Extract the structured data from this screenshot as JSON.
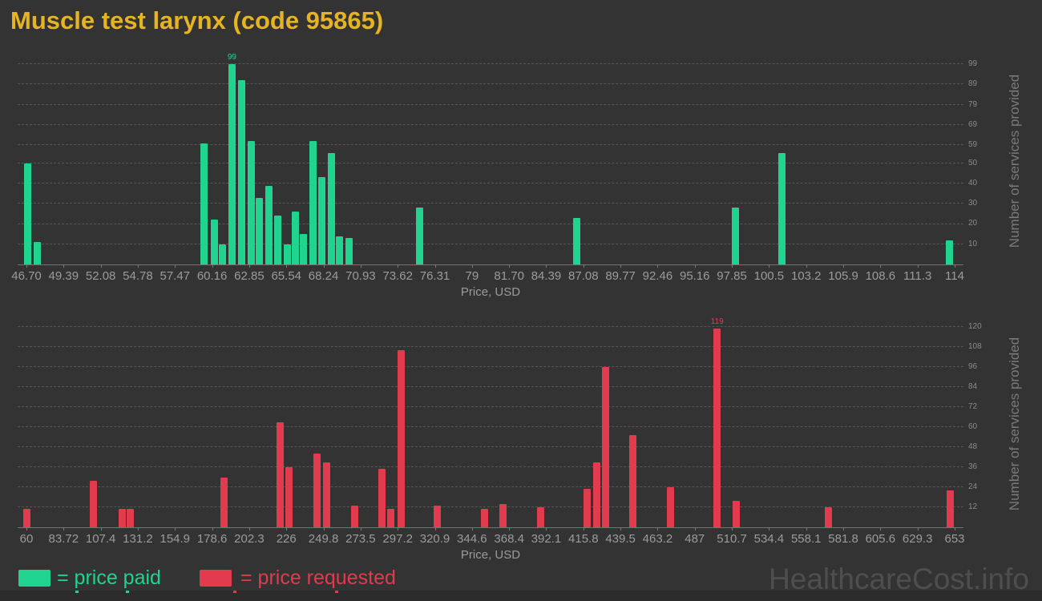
{
  "title": "Muscle test larynx (code 95865)",
  "watermark": "HealthcareCost.info",
  "legend": {
    "paid_label": "= price paid",
    "requested_label": "= price requested"
  },
  "colors": {
    "background": "#333333",
    "paid": "#20d38e",
    "requested": "#e13b4d",
    "title": "#e6b422",
    "axis_text": "#9b9b9b",
    "right_axis_text": "#8a8a8a",
    "axis_line": "#747474",
    "grid": "#55554f",
    "watermark": "#4e4e4e",
    "bottom_strip": "#2c2c2c"
  },
  "chart_data": [
    {
      "type": "bar",
      "name": "price-paid-histogram",
      "series": "price paid",
      "xlabel": "Price, USD",
      "ylabel": "Number of services provided",
      "x_min": 46.7,
      "x_max": 114,
      "x_ticks": [
        "46.70",
        "49.39",
        "52.08",
        "54.78",
        "57.47",
        "60.16",
        "62.85",
        "65.54",
        "68.24",
        "70.93",
        "73.62",
        "76.31",
        "79",
        "81.70",
        "84.39",
        "87.08",
        "89.77",
        "92.46",
        "95.16",
        "97.85",
        "100.5",
        "103.2",
        "105.9",
        "108.6",
        "111.3",
        "114"
      ],
      "y_ticks": [
        10,
        20,
        30,
        40,
        50,
        59,
        69,
        79,
        89,
        99
      ],
      "ylim": [
        0,
        99
      ],
      "grid": true,
      "points": [
        {
          "price": 46.8,
          "count": 50
        },
        {
          "price": 47.5,
          "count": 11
        },
        {
          "price": 59.6,
          "count": 60
        },
        {
          "price": 60.3,
          "count": 22
        },
        {
          "price": 60.9,
          "count": 10
        },
        {
          "price": 61.6,
          "count": 99,
          "label": "99"
        },
        {
          "price": 62.3,
          "count": 91
        },
        {
          "price": 63.0,
          "count": 61
        },
        {
          "price": 63.6,
          "count": 33
        },
        {
          "price": 64.3,
          "count": 39
        },
        {
          "price": 64.9,
          "count": 24
        },
        {
          "price": 65.6,
          "count": 10
        },
        {
          "price": 66.2,
          "count": 26
        },
        {
          "price": 66.8,
          "count": 15
        },
        {
          "price": 67.5,
          "count": 61
        },
        {
          "price": 68.1,
          "count": 43
        },
        {
          "price": 68.8,
          "count": 55
        },
        {
          "price": 69.4,
          "count": 14
        },
        {
          "price": 70.1,
          "count": 13
        },
        {
          "price": 75.2,
          "count": 28
        },
        {
          "price": 86.6,
          "count": 23
        },
        {
          "price": 98.1,
          "count": 28
        },
        {
          "price": 101.5,
          "count": 55
        },
        {
          "price": 113.6,
          "count": 12
        }
      ]
    },
    {
      "type": "bar",
      "name": "price-requested-histogram",
      "series": "price requested",
      "xlabel": "Price, USD",
      "ylabel": "Number of services provided",
      "x_min": 60,
      "x_max": 653,
      "x_ticks": [
        "60",
        "83.72",
        "107.4",
        "131.2",
        "154.9",
        "178.6",
        "202.3",
        "226",
        "249.8",
        "273.5",
        "297.2",
        "320.9",
        "344.6",
        "368.4",
        "392.1",
        "415.8",
        "439.5",
        "463.2",
        "487",
        "510.7",
        "534.4",
        "558.1",
        "581.8",
        "605.6",
        "629.3",
        "653"
      ],
      "y_ticks": [
        12,
        24,
        36,
        48,
        60,
        72,
        84,
        96,
        108,
        120
      ],
      "ylim": [
        0,
        120
      ],
      "grid": true,
      "points": [
        {
          "price": 60.2,
          "count": 11
        },
        {
          "price": 103.0,
          "count": 28
        },
        {
          "price": 121.0,
          "count": 11
        },
        {
          "price": 126.5,
          "count": 11
        },
        {
          "price": 186.0,
          "count": 30
        },
        {
          "price": 222.0,
          "count": 63
        },
        {
          "price": 227.5,
          "count": 36
        },
        {
          "price": 245.8,
          "count": 44
        },
        {
          "price": 251.7,
          "count": 39
        },
        {
          "price": 269.6,
          "count": 13
        },
        {
          "price": 287.0,
          "count": 35
        },
        {
          "price": 292.9,
          "count": 11
        },
        {
          "price": 299.3,
          "count": 106
        },
        {
          "price": 322.3,
          "count": 13
        },
        {
          "price": 352.5,
          "count": 11
        },
        {
          "price": 364.2,
          "count": 14
        },
        {
          "price": 388.4,
          "count": 12
        },
        {
          "price": 418.0,
          "count": 23
        },
        {
          "price": 424.1,
          "count": 39
        },
        {
          "price": 429.9,
          "count": 96
        },
        {
          "price": 447.4,
          "count": 55
        },
        {
          "price": 471.6,
          "count": 24
        },
        {
          "price": 501.3,
          "count": 119,
          "label": "119"
        },
        {
          "price": 513.4,
          "count": 16
        },
        {
          "price": 572.2,
          "count": 12
        },
        {
          "price": 650.0,
          "count": 22
        }
      ]
    }
  ],
  "bottom_strip": {
    "marks": [
      {
        "x": 94,
        "series": "paid"
      },
      {
        "x": 157,
        "series": "paid"
      },
      {
        "x": 291,
        "series": "requested"
      },
      {
        "x": 418,
        "series": "requested"
      }
    ]
  }
}
